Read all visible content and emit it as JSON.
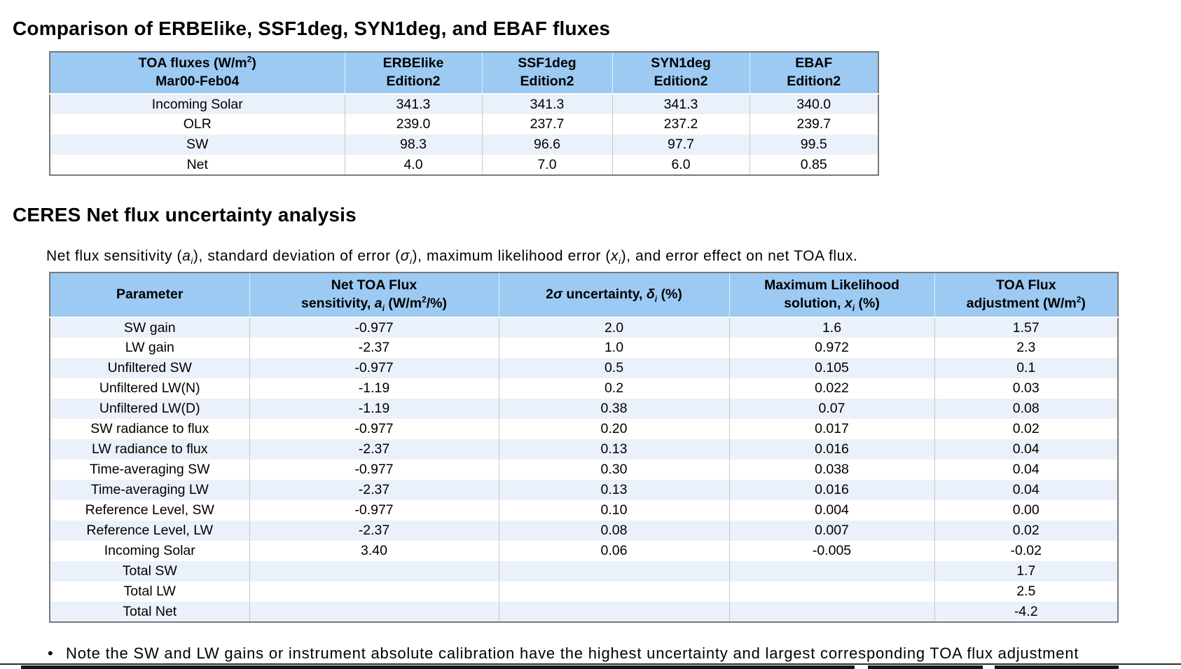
{
  "page": {
    "title1": "Comparison of ERBElike, SSF1deg, SYN1deg, and EBAF fluxes",
    "title2": "CERES Net flux uncertainty analysis",
    "description": "Net flux sensitivity (*a~i~*), standard deviation of error (*σ~i~*), maximum likelihood error (*x~i~*), and error effect on net TOA flux.",
    "bullet_marker": "•",
    "bullet_note": "Note the SW and LW gains or instrument absolute calibration have the highest uncertainty and largest corresponding TOA flux adjustment"
  },
  "colors": {
    "header_blue": "#9CCAF3",
    "row_alt_blue": "#EBF1FA",
    "border_gray": "#7a7a7a"
  },
  "flux_table": {
    "headers": [
      {
        "lines": [
          "TOA fluxes (W/m^2^)",
          "Mar00-Feb04"
        ]
      },
      {
        "lines": [
          "ERBElike",
          "Edition2"
        ]
      },
      {
        "lines": [
          "SSF1deg",
          "Edition2"
        ]
      },
      {
        "lines": [
          "SYN1deg",
          "Edition2"
        ]
      },
      {
        "lines": [
          "EBAF",
          "Edition2"
        ]
      }
    ],
    "rows": [
      {
        "label": "Incoming Solar",
        "values": [
          "341.3",
          "341.3",
          "341.3",
          "340.0"
        ]
      },
      {
        "label": "OLR",
        "values": [
          "239.0",
          "237.7",
          "237.2",
          "239.7"
        ]
      },
      {
        "label": "SW",
        "values": [
          "98.3",
          "96.6",
          "97.7",
          "99.5"
        ]
      },
      {
        "label": "Net",
        "values": [
          "4.0",
          "7.0",
          "6.0",
          "0.85"
        ]
      }
    ]
  },
  "uncertainty_table": {
    "headers": [
      {
        "lines": [
          "Parameter"
        ]
      },
      {
        "lines": [
          "Net TOA Flux",
          "sensitivity, *a~i~* (W/m^2^/%)"
        ]
      },
      {
        "lines": [
          "2*σ* uncertainty, *δ~i~* (%)"
        ]
      },
      {
        "lines": [
          "Maximum Likelihood",
          "solution, *x~i~* (%)"
        ]
      },
      {
        "lines": [
          "TOA Flux",
          "adjustment (W/m^2^)"
        ]
      }
    ],
    "rows": [
      {
        "label": "SW gain",
        "values": [
          "-0.977",
          "2.0",
          "1.6",
          "1.57"
        ]
      },
      {
        "label": "LW gain",
        "values": [
          "-2.37",
          "1.0",
          "0.972",
          "2.3"
        ]
      },
      {
        "label": "Unfiltered SW",
        "values": [
          "-0.977",
          "0.5",
          "0.105",
          "0.1"
        ]
      },
      {
        "label": "Unfiltered LW(N)",
        "values": [
          "-1.19",
          "0.2",
          "0.022",
          "0.03"
        ]
      },
      {
        "label": "Unfiltered LW(D)",
        "values": [
          "-1.19",
          "0.38",
          "0.07",
          "0.08"
        ]
      },
      {
        "label": "SW radiance to flux",
        "values": [
          "-0.977",
          "0.20",
          "0.017",
          "0.02"
        ]
      },
      {
        "label": "LW radiance to flux",
        "values": [
          "-2.37",
          "0.13",
          "0.016",
          "0.04"
        ]
      },
      {
        "label": "Time-averaging SW",
        "values": [
          "-0.977",
          "0.30",
          "0.038",
          "0.04"
        ]
      },
      {
        "label": "Time-averaging LW",
        "values": [
          "-2.37",
          "0.13",
          "0.016",
          "0.04"
        ]
      },
      {
        "label": "Reference Level, SW",
        "values": [
          "-0.977",
          "0.10",
          "0.004",
          "0.00"
        ]
      },
      {
        "label": "Reference Level, LW",
        "values": [
          "-2.37",
          "0.08",
          "0.007",
          "0.02"
        ]
      },
      {
        "label": "Incoming Solar",
        "values": [
          "3.40",
          "0.06",
          "-0.005",
          "-0.02"
        ]
      },
      {
        "label": "Total SW",
        "values": [
          "",
          "",
          "",
          "1.7"
        ]
      },
      {
        "label": "Total LW",
        "values": [
          "",
          "",
          "",
          "2.5"
        ]
      },
      {
        "label": "Total Net",
        "values": [
          "",
          "",
          "",
          "-4.2"
        ]
      }
    ]
  }
}
